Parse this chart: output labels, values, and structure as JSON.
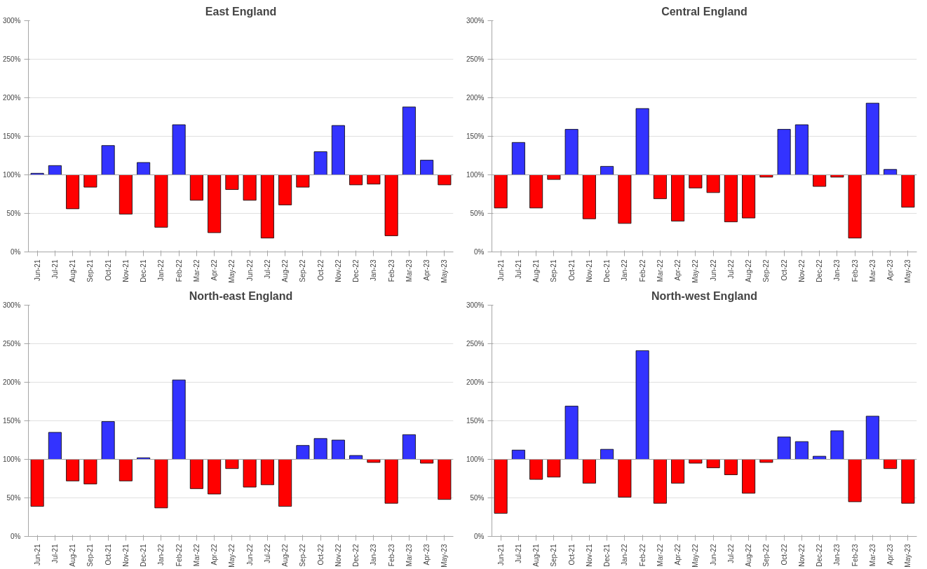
{
  "chart_data": [
    {
      "type": "bar",
      "title": "East England",
      "categories": [
        "Jun-21",
        "Jul-21",
        "Aug-21",
        "Sep-21",
        "Oct-21",
        "Nov-21",
        "Dec-21",
        "Jan-22",
        "Feb-22",
        "Mar-22",
        "Apr-22",
        "May-22",
        "Jun-22",
        "Jul-22",
        "Aug-22",
        "Sep-22",
        "Oct-22",
        "Nov-22",
        "Dec-22",
        "Jan-23",
        "Feb-23",
        "Mar-23",
        "Apr-23",
        "May-23"
      ],
      "base": [
        100,
        100,
        100,
        100,
        100,
        100,
        100,
        100,
        100,
        100,
        100,
        100,
        100,
        100,
        100,
        100,
        100,
        100,
        100,
        100,
        100,
        100,
        100,
        100
      ],
      "values": [
        2,
        12,
        -44,
        -16,
        38,
        -51,
        16,
        -68,
        65,
        -33,
        -75,
        -19,
        -33,
        -82,
        -39,
        -16,
        30,
        64,
        -13,
        -12,
        -79,
        88,
        19,
        -13
      ],
      "colors": [
        "#3333ff",
        "#3333ff",
        "#ff0000",
        "#ff0000",
        "#3333ff",
        "#ff0000",
        "#3333ff",
        "#ff0000",
        "#3333ff",
        "#ff0000",
        "#ff0000",
        "#ff0000",
        "#ff0000",
        "#ff0000",
        "#ff0000",
        "#ff0000",
        "#3333ff",
        "#3333ff",
        "#ff0000",
        "#ff0000",
        "#ff0000",
        "#3333ff",
        "#3333ff",
        "#ff0000"
      ],
      "ylim": [
        0,
        300
      ],
      "yticks": [
        {
          "value": 0,
          "label": "0%"
        },
        {
          "value": 50,
          "label": "50%"
        },
        {
          "value": 100,
          "label": "100%"
        },
        {
          "value": 150,
          "label": "150%"
        },
        {
          "value": 200,
          "label": "200%"
        },
        {
          "value": 250,
          "label": "250%"
        },
        {
          "value": 300,
          "label": "300%"
        }
      ],
      "grid": "y",
      "ref_lines": [
        {
          "axis": "y",
          "value": 100,
          "color": "#a6a6a6"
        }
      ]
    },
    {
      "type": "bar",
      "title": "Central England",
      "categories": [
        "Jun-21",
        "Jul-21",
        "Aug-21",
        "Sep-21",
        "Oct-21",
        "Nov-21",
        "Dec-21",
        "Jan-22",
        "Feb-22",
        "Mar-22",
        "Apr-22",
        "May-22",
        "Jun-22",
        "Jul-22",
        "Aug-22",
        "Sep-22",
        "Oct-22",
        "Nov-22",
        "Dec-22",
        "Jan-23",
        "Feb-23",
        "Mar-23",
        "Apr-23",
        "May-23"
      ],
      "base": [
        100,
        100,
        100,
        100,
        100,
        100,
        100,
        100,
        100,
        100,
        100,
        100,
        100,
        100,
        100,
        100,
        100,
        100,
        100,
        100,
        100,
        100,
        100,
        100
      ],
      "values": [
        -43,
        42,
        -43,
        -6,
        59,
        -57,
        11,
        -63,
        86,
        -31,
        -60,
        -17,
        -23,
        -61,
        -56,
        -3,
        59,
        65,
        -15,
        -3,
        -82,
        93,
        7,
        -42
      ],
      "colors": [
        "#ff0000",
        "#3333ff",
        "#ff0000",
        "#ff0000",
        "#3333ff",
        "#ff0000",
        "#3333ff",
        "#ff0000",
        "#3333ff",
        "#ff0000",
        "#ff0000",
        "#ff0000",
        "#ff0000",
        "#ff0000",
        "#ff0000",
        "#ff0000",
        "#3333ff",
        "#3333ff",
        "#ff0000",
        "#ff0000",
        "#ff0000",
        "#3333ff",
        "#3333ff",
        "#ff0000"
      ],
      "ylim": [
        0,
        300
      ],
      "yticks": [
        {
          "value": 0,
          "label": "0%"
        },
        {
          "value": 50,
          "label": "50%"
        },
        {
          "value": 100,
          "label": "100%"
        },
        {
          "value": 150,
          "label": "150%"
        },
        {
          "value": 200,
          "label": "200%"
        },
        {
          "value": 250,
          "label": "250%"
        },
        {
          "value": 300,
          "label": "300%"
        }
      ],
      "grid": "y",
      "ref_lines": [
        {
          "axis": "y",
          "value": 100,
          "color": "#a6a6a6"
        }
      ]
    },
    {
      "type": "bar",
      "title": "North-east England",
      "categories": [
        "Jun-21",
        "Jul-21",
        "Aug-21",
        "Sep-21",
        "Oct-21",
        "Nov-21",
        "Dec-21",
        "Jan-22",
        "Feb-22",
        "Mar-22",
        "Apr-22",
        "May-22",
        "Jun-22",
        "Jul-22",
        "Aug-22",
        "Sep-22",
        "Oct-22",
        "Nov-22",
        "Dec-22",
        "Jan-23",
        "Feb-23",
        "Mar-23",
        "Apr-23",
        "May-23"
      ],
      "base": [
        100,
        100,
        100,
        100,
        100,
        100,
        100,
        100,
        100,
        100,
        100,
        100,
        100,
        100,
        100,
        100,
        100,
        100,
        100,
        100,
        100,
        100,
        100,
        100
      ],
      "values": [
        -61,
        35,
        -28,
        -32,
        49,
        -28,
        2,
        -63,
        103,
        -38,
        -45,
        -12,
        -36,
        -33,
        -61,
        18,
        27,
        25,
        5,
        -4,
        -57,
        32,
        -5,
        -52
      ],
      "colors": [
        "#ff0000",
        "#3333ff",
        "#ff0000",
        "#ff0000",
        "#3333ff",
        "#ff0000",
        "#3333ff",
        "#ff0000",
        "#3333ff",
        "#ff0000",
        "#ff0000",
        "#ff0000",
        "#ff0000",
        "#ff0000",
        "#ff0000",
        "#3333ff",
        "#3333ff",
        "#3333ff",
        "#3333ff",
        "#ff0000",
        "#ff0000",
        "#3333ff",
        "#ff0000",
        "#ff0000"
      ],
      "ylim": [
        0,
        300
      ],
      "yticks": [
        {
          "value": 0,
          "label": "0%"
        },
        {
          "value": 50,
          "label": "50%"
        },
        {
          "value": 100,
          "label": "100%"
        },
        {
          "value": 150,
          "label": "150%"
        },
        {
          "value": 200,
          "label": "200%"
        },
        {
          "value": 250,
          "label": "250%"
        },
        {
          "value": 300,
          "label": "300%"
        }
      ],
      "grid": "y",
      "ref_lines": [
        {
          "axis": "y",
          "value": 100,
          "color": "#a6a6a6"
        }
      ]
    },
    {
      "type": "bar",
      "title": "North-west England",
      "categories": [
        "Jun-21",
        "Jul-21",
        "Aug-21",
        "Sep-21",
        "Oct-21",
        "Nov-21",
        "Dec-21",
        "Jan-22",
        "Feb-22",
        "Mar-22",
        "Apr-22",
        "May-22",
        "Jun-22",
        "Jul-22",
        "Aug-22",
        "Sep-22",
        "Oct-22",
        "Nov-22",
        "Dec-22",
        "Jan-23",
        "Feb-23",
        "Mar-23",
        "Apr-23",
        "May-23"
      ],
      "base": [
        100,
        100,
        100,
        100,
        100,
        100,
        100,
        100,
        100,
        100,
        100,
        100,
        100,
        100,
        100,
        100,
        100,
        100,
        100,
        100,
        100,
        100,
        100,
        100
      ],
      "values": [
        -70,
        12,
        -26,
        -23,
        69,
        -31,
        13,
        -49,
        141,
        -57,
        -31,
        -5,
        -11,
        -20,
        -44,
        -4,
        29,
        23,
        4,
        37,
        -55,
        56,
        -12,
        -57
      ],
      "colors": [
        "#ff0000",
        "#3333ff",
        "#ff0000",
        "#ff0000",
        "#3333ff",
        "#ff0000",
        "#3333ff",
        "#ff0000",
        "#3333ff",
        "#ff0000",
        "#ff0000",
        "#ff0000",
        "#ff0000",
        "#ff0000",
        "#ff0000",
        "#ff0000",
        "#3333ff",
        "#3333ff",
        "#3333ff",
        "#3333ff",
        "#ff0000",
        "#3333ff",
        "#ff0000",
        "#ff0000"
      ],
      "ylim": [
        0,
        300
      ],
      "yticks": [
        {
          "value": 0,
          "label": "0%"
        },
        {
          "value": 50,
          "label": "50%"
        },
        {
          "value": 100,
          "label": "100%"
        },
        {
          "value": 150,
          "label": "150%"
        },
        {
          "value": 200,
          "label": "200%"
        },
        {
          "value": 250,
          "label": "250%"
        },
        {
          "value": 300,
          "label": "300%"
        }
      ],
      "grid": "y",
      "ref_lines": [
        {
          "axis": "y",
          "value": 100,
          "color": "#a6a6a6"
        }
      ]
    }
  ]
}
